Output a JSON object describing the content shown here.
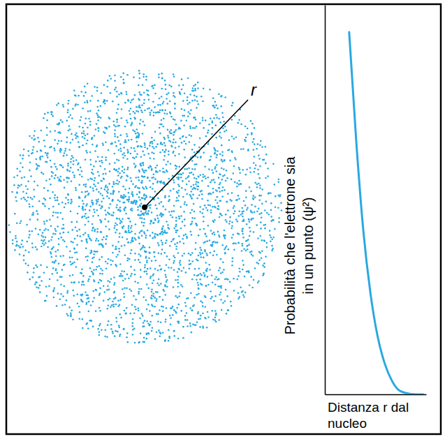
{
  "chart_data": {
    "type": "line",
    "x_label": "Distanza r dal nucleo",
    "y_label": "Probabilità che l'elettrone sia in un punto (ψ²)",
    "x": [
      2.4,
      3.1,
      3.8,
      4.5,
      5.2,
      5.9,
      6.6,
      7.2,
      7.9,
      9.0,
      9.7
    ],
    "values": [
      9.3,
      6.5,
      4.2,
      2.6,
      1.5,
      0.8,
      0.36,
      0.13,
      0.04,
      0.0,
      0.0
    ],
    "color": "#29a9e0",
    "xlim": [
      0,
      10
    ],
    "ylim": [
      0,
      10
    ],
    "xticks": [],
    "yticks": [],
    "tick_labels": false,
    "grid": false
  },
  "illustration": {
    "label": "r"
  }
}
